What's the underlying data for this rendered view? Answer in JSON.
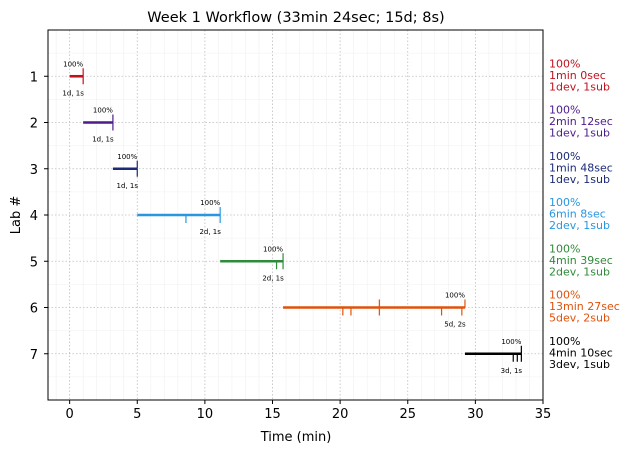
{
  "chart_data": {
    "type": "gantt",
    "title": "Week 1 Workflow (33min 24sec; 15d; 8s)",
    "xlabel": "Time (min)",
    "ylabel": "Lab #",
    "xlim": [
      -1.6,
      35
    ],
    "ylim": [
      0,
      8
    ],
    "xticks": [
      0,
      5,
      10,
      15,
      20,
      25,
      30,
      35
    ],
    "yticks": [
      1,
      2,
      3,
      4,
      5,
      6,
      7
    ],
    "grid": true,
    "labs": [
      {
        "lab": 1,
        "color": "#c0121e",
        "start": 0.0,
        "end": 1.0,
        "ticks_down": [
          1.0
        ],
        "ticks_up": [
          1.0
        ],
        "pct": "100%",
        "counts": "1d, 1s",
        "side": [
          "100%",
          "1min 0sec",
          "1dev, 1sub"
        ]
      },
      {
        "lab": 2,
        "color": "#4b1c8a",
        "start": 1.0,
        "end": 3.2,
        "ticks_down": [
          3.2
        ],
        "ticks_up": [
          3.2
        ],
        "pct": "100%",
        "counts": "1d, 1s",
        "side": [
          "100%",
          "2min 12sec",
          "1dev, 1sub"
        ]
      },
      {
        "lab": 3,
        "color": "#1c2a78",
        "start": 3.2,
        "end": 5.0,
        "ticks_down": [
          5.0
        ],
        "ticks_up": [
          5.0
        ],
        "pct": "100%",
        "counts": "1d, 1s",
        "side": [
          "100%",
          "1min 48sec",
          "1dev, 1sub"
        ]
      },
      {
        "lab": 4,
        "color": "#2b96e0",
        "start": 5.0,
        "end": 11.13,
        "ticks_down": [
          8.6,
          11.13
        ],
        "ticks_up": [
          11.13
        ],
        "pct": "100%",
        "counts": "2d, 1s",
        "side": [
          "100%",
          "6min 8sec",
          "2dev, 1sub"
        ]
      },
      {
        "lab": 5,
        "color": "#2f8a3a",
        "start": 11.13,
        "end": 15.78,
        "ticks_down": [
          15.3,
          15.78
        ],
        "ticks_up": [
          15.78
        ],
        "pct": "100%",
        "counts": "2d, 1s",
        "side": [
          "100%",
          "4min 39sec",
          "2dev, 1sub"
        ]
      },
      {
        "lab": 6,
        "color": "#e0520c",
        "start": 15.78,
        "end": 29.23,
        "ticks_down": [
          20.2,
          20.8,
          22.9,
          27.5,
          29.0
        ],
        "ticks_up": [
          22.9,
          29.23
        ],
        "pct": "100%",
        "counts": "5d, 2s",
        "side": [
          "100%",
          "13min 27sec",
          "5dev, 2sub"
        ]
      },
      {
        "lab": 7,
        "color": "#000000",
        "start": 29.23,
        "end": 33.4,
        "ticks_down": [
          32.8,
          33.1,
          33.4
        ],
        "ticks_up": [
          33.4
        ],
        "pct": "100%",
        "counts": "3d, 1s",
        "side": [
          "100%",
          "4min 10sec",
          "3dev, 1sub"
        ]
      }
    ]
  }
}
